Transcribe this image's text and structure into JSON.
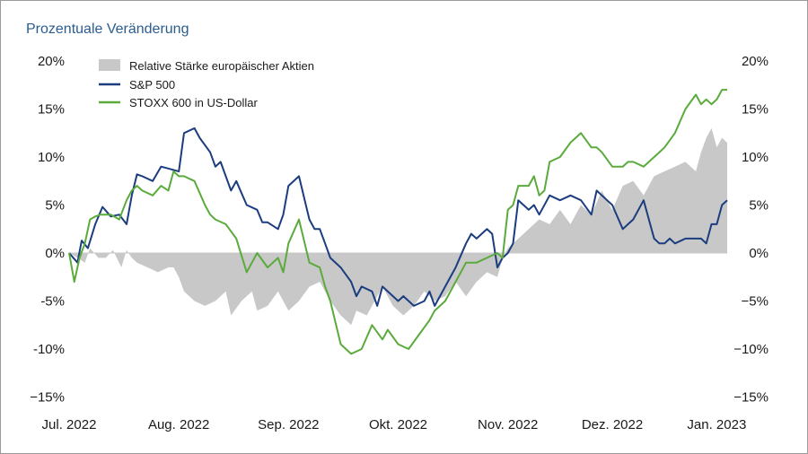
{
  "chart_data": {
    "type": "line",
    "title": "Prozentuale Veränderung",
    "ylim": [
      -15,
      20
    ],
    "yticks_left": [
      "20%",
      "15%",
      "10%",
      "5%",
      "0%",
      "-5%",
      "-10%",
      "−15%"
    ],
    "yticks_right": [
      "20%",
      "15%",
      "10%",
      "5%",
      "0%",
      "−5%",
      "−10%",
      "−15%"
    ],
    "ytick_values": [
      20,
      15,
      10,
      5,
      0,
      -5,
      -10,
      -15
    ],
    "x_range": [
      0,
      6.3
    ],
    "xticks": [
      {
        "label": "Jul. 2022",
        "pos": 0
      },
      {
        "label": "Aug. 2022",
        "pos": 1.05
      },
      {
        "label": "Sep. 2022",
        "pos": 2.1
      },
      {
        "label": "Okt. 2022",
        "pos": 3.15
      },
      {
        "label": "Nov. 2022",
        "pos": 4.2
      },
      {
        "label": "Dez. 2022",
        "pos": 5.2
      },
      {
        "label": "Jan. 2023",
        "pos": 6.2
      }
    ],
    "legend": [
      {
        "name": "Relative Stärke europäischer Aktien",
        "kind": "area",
        "color": "#c8c8c8"
      },
      {
        "name": "S&P 500",
        "kind": "line",
        "color": "#1b3d7f"
      },
      {
        "name": "STOXX 600 in US-Dollar",
        "kind": "line",
        "color": "#5aab3c"
      }
    ],
    "series": [
      {
        "name": "Relative Stärke europäischer Aktien",
        "type": "area",
        "color": "#c8c8c8",
        "x": [
          0,
          0.08,
          0.15,
          0.2,
          0.28,
          0.35,
          0.42,
          0.5,
          0.55,
          0.6,
          0.65,
          0.75,
          0.85,
          0.95,
          1.0,
          1.05,
          1.1,
          1.15,
          1.2,
          1.3,
          1.4,
          1.5,
          1.55,
          1.65,
          1.75,
          1.8,
          1.9,
          2.0,
          2.1,
          2.2,
          2.3,
          2.4,
          2.5,
          2.6,
          2.7,
          2.75,
          2.85,
          2.95,
          3.0,
          3.1,
          3.2,
          3.3,
          3.4,
          3.5,
          3.6,
          3.7,
          3.8,
          3.9,
          4.0,
          4.1,
          4.15,
          4.2,
          4.3,
          4.4,
          4.5,
          4.6,
          4.7,
          4.8,
          4.9,
          5.0,
          5.1,
          5.2,
          5.3,
          5.4,
          5.5,
          5.6,
          5.7,
          5.8,
          5.9,
          6.0,
          6.05,
          6.1,
          6.15,
          6.2,
          6.25,
          6.3
        ],
        "values": [
          0,
          -0.5,
          -1,
          0.5,
          -0.5,
          -0.5,
          0.3,
          -1.5,
          0.3,
          -0.5,
          -1.0,
          -1.5,
          -2.0,
          -1.5,
          -1.5,
          -2.5,
          -4.0,
          -4.5,
          -5.0,
          -5.5,
          -5.0,
          -4.0,
          -6.5,
          -5.0,
          -4.0,
          -6.0,
          -5.5,
          -4.0,
          -6.0,
          -5.0,
          -3.5,
          -3.0,
          -5.0,
          -6.5,
          -7.5,
          -6.0,
          -6.5,
          -4.5,
          -3.5,
          -5.5,
          -6.5,
          -5.5,
          -4.0,
          -5.0,
          -4.5,
          -3.0,
          -4.5,
          -3.0,
          -2.0,
          -2.5,
          -0.5,
          0.5,
          1.5,
          2.5,
          3.5,
          3.0,
          4.5,
          3.0,
          5.0,
          4.0,
          6.5,
          4.5,
          7.0,
          7.5,
          6.0,
          8.0,
          8.5,
          9.0,
          9.5,
          8.5,
          10.5,
          12.0,
          13.0,
          11.0,
          12.0,
          11.5
        ]
      },
      {
        "name": "S&P 500",
        "type": "line",
        "color": "#1b3d7f",
        "x": [
          0,
          0.08,
          0.12,
          0.18,
          0.25,
          0.32,
          0.4,
          0.48,
          0.55,
          0.6,
          0.65,
          0.7,
          0.8,
          0.88,
          0.95,
          1.05,
          1.1,
          1.2,
          1.25,
          1.35,
          1.4,
          1.45,
          1.5,
          1.55,
          1.6,
          1.7,
          1.8,
          1.85,
          1.9,
          2.0,
          2.05,
          2.1,
          2.2,
          2.3,
          2.35,
          2.4,
          2.45,
          2.5,
          2.6,
          2.7,
          2.75,
          2.8,
          2.9,
          2.95,
          3.0,
          3.05,
          3.15,
          3.2,
          3.3,
          3.4,
          3.45,
          3.5,
          3.6,
          3.7,
          3.8,
          3.85,
          3.9,
          4.0,
          4.05,
          4.1,
          4.15,
          4.2,
          4.25,
          4.3,
          4.4,
          4.45,
          4.5,
          4.6,
          4.7,
          4.8,
          4.9,
          5.0,
          5.05,
          5.1,
          5.2,
          5.3,
          5.35,
          5.4,
          5.5,
          5.6,
          5.65,
          5.7,
          5.75,
          5.8,
          5.9,
          6.0,
          6.05,
          6.1,
          6.15,
          6.2,
          6.25,
          6.3
        ],
        "values": [
          0,
          -1,
          1.3,
          0.5,
          3,
          4.8,
          3.8,
          4.0,
          3.0,
          6.0,
          8.2,
          8.0,
          7.5,
          9.0,
          8.8,
          8.5,
          12.5,
          13.0,
          12.0,
          10.5,
          9.0,
          9.5,
          8.0,
          6.5,
          7.5,
          5.0,
          4.5,
          3.2,
          3.2,
          2.5,
          4.0,
          7.0,
          8.0,
          3.5,
          2.5,
          2.5,
          1.0,
          -0.5,
          -1.5,
          -3.0,
          -4.5,
          -3.5,
          -4.0,
          -5.5,
          -3.5,
          -4.0,
          -5.0,
          -4.5,
          -5.5,
          -5.0,
          -4.0,
          -5.5,
          -3.5,
          -1.5,
          1.0,
          2.0,
          1.5,
          2.5,
          2.0,
          -1.5,
          -0.5,
          0.0,
          1.0,
          5.5,
          4.5,
          5.0,
          4.0,
          6.0,
          5.5,
          6.0,
          5.5,
          4.0,
          6.5,
          6.0,
          5.0,
          2.5,
          3.0,
          3.5,
          5.5,
          1.5,
          1.0,
          1.0,
          1.5,
          1.0,
          1.5,
          1.5,
          1.5,
          1.0,
          3.0,
          3.0,
          5.0,
          5.5
        ]
      },
      {
        "name": "STOXX 600 in US-Dollar",
        "type": "line",
        "color": "#5aab3c",
        "x": [
          0,
          0.05,
          0.1,
          0.15,
          0.2,
          0.25,
          0.3,
          0.4,
          0.48,
          0.55,
          0.6,
          0.65,
          0.7,
          0.8,
          0.88,
          0.95,
          1.0,
          1.05,
          1.1,
          1.2,
          1.3,
          1.35,
          1.4,
          1.5,
          1.6,
          1.7,
          1.75,
          1.8,
          1.9,
          2.0,
          2.05,
          2.1,
          2.2,
          2.3,
          2.4,
          2.45,
          2.5,
          2.6,
          2.7,
          2.8,
          2.9,
          3.0,
          3.05,
          3.15,
          3.25,
          3.35,
          3.45,
          3.5,
          3.6,
          3.7,
          3.8,
          3.9,
          4.0,
          4.1,
          4.15,
          4.2,
          4.25,
          4.3,
          4.4,
          4.45,
          4.5,
          4.55,
          4.6,
          4.7,
          4.8,
          4.9,
          5.0,
          5.05,
          5.1,
          5.2,
          5.3,
          5.35,
          5.4,
          5.5,
          5.6,
          5.65,
          5.7,
          5.8,
          5.9,
          6.0,
          6.05,
          6.1,
          6.15,
          6.2,
          6.25,
          6.3
        ],
        "values": [
          0,
          -3,
          -0.5,
          1,
          3.5,
          3.8,
          4.0,
          4.0,
          3.5,
          5.5,
          6.5,
          7.0,
          6.5,
          6.0,
          7.0,
          6.5,
          8.5,
          8.0,
          8.0,
          7.5,
          5.0,
          4.0,
          3.5,
          3.0,
          1.5,
          -2.0,
          -1.0,
          0.0,
          -1.5,
          -0.5,
          -2.0,
          1.0,
          3.5,
          -1.0,
          -1.5,
          -3.5,
          -5.0,
          -9.5,
          -10.5,
          -10.0,
          -7.5,
          -9.0,
          -8.0,
          -9.5,
          -10.0,
          -8.5,
          -7.0,
          -6.0,
          -5.0,
          -3.0,
          -1.0,
          -1.0,
          -0.5,
          0.0,
          -0.5,
          4.5,
          5.0,
          7.0,
          7.0,
          8.0,
          6.0,
          6.5,
          9.5,
          10.0,
          11.5,
          12.5,
          11.0,
          11.0,
          10.5,
          9.0,
          9.0,
          9.5,
          9.5,
          9.0,
          10.0,
          10.5,
          11.0,
          12.5,
          15.0,
          16.5,
          15.5,
          16.0,
          15.5,
          16.0,
          17.0,
          17.0
        ]
      }
    ]
  }
}
